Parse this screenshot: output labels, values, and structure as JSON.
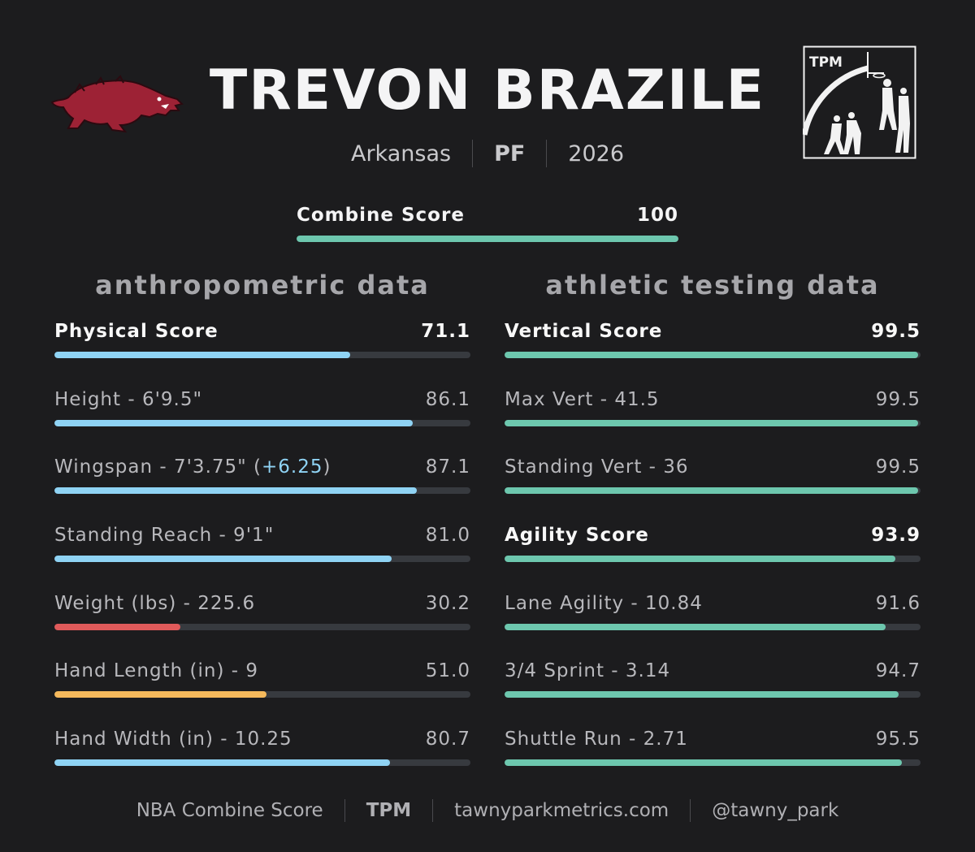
{
  "player": {
    "name": "TREVON BRAZILE",
    "school": "Arkansas",
    "position": "PF",
    "year": "2026"
  },
  "logos": {
    "left_icon": "razorback-hog-icon",
    "right_icon": "tpm-logo-icon",
    "right_text": "TPM"
  },
  "combine": {
    "label": "Combine Score",
    "value": "100",
    "fraction": 1.0,
    "color": "#6dc7ae"
  },
  "columns": {
    "left_title": "anthropometric data",
    "right_title": "athletic testing data"
  },
  "anthro": [
    {
      "label": "Physical Score",
      "value": "71.1",
      "fraction": 0.711,
      "color": "#8fd3f4",
      "bold": true
    },
    {
      "label": "Height - 6'9.5\"",
      "value": "86.1",
      "fraction": 0.861,
      "color": "#8fd3f4"
    },
    {
      "label_prefix": "Wingspan - 7'3.75\" (",
      "label_highlight": "+6.25",
      "label_suffix": ")",
      "value": "87.1",
      "fraction": 0.871,
      "color": "#8fd3f4"
    },
    {
      "label": "Standing Reach - 9'1\"",
      "value": "81.0",
      "fraction": 0.81,
      "color": "#8fd3f4"
    },
    {
      "label": "Weight (lbs) - 225.6",
      "value": "30.2",
      "fraction": 0.302,
      "color": "#e05a5a"
    },
    {
      "label": "Hand Length (in) - 9",
      "value": "51.0",
      "fraction": 0.51,
      "color": "#f5b95c"
    },
    {
      "label": "Hand Width (in) - 10.25",
      "value": "80.7",
      "fraction": 0.807,
      "color": "#8fd3f4"
    }
  ],
  "athletic": [
    {
      "label": "Vertical Score",
      "value": "99.5",
      "fraction": 0.995,
      "color": "#6dc7ae",
      "bold": true
    },
    {
      "label": "Max Vert - 41.5",
      "value": "99.5",
      "fraction": 0.995,
      "color": "#6dc7ae"
    },
    {
      "label": "Standing Vert - 36",
      "value": "99.5",
      "fraction": 0.995,
      "color": "#6dc7ae"
    },
    {
      "label": "Agility Score",
      "value": "93.9",
      "fraction": 0.939,
      "color": "#6dc7ae",
      "bold": true
    },
    {
      "label": "Lane Agility - 10.84",
      "value": "91.6",
      "fraction": 0.916,
      "color": "#6dc7ae"
    },
    {
      "label": "3/4 Sprint - 3.14",
      "value": "94.7",
      "fraction": 0.947,
      "color": "#6dc7ae"
    },
    {
      "label": "Shuttle Run - 2.71",
      "value": "95.5",
      "fraction": 0.955,
      "color": "#6dc7ae"
    }
  ],
  "footer": {
    "left": "NBA Combine Score",
    "brand": "TPM",
    "site": "tawnyparkmetrics.com",
    "handle": "@tawny_park"
  }
}
